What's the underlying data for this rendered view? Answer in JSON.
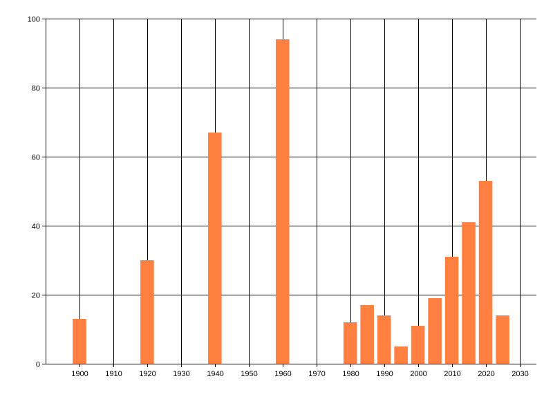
{
  "chart_data": {
    "type": "bar",
    "title": "",
    "xlabel": "",
    "ylabel": "",
    "x": [
      1900,
      1920,
      1940,
      1960,
      1980,
      1985,
      1990,
      1995,
      2000,
      2005,
      2010,
      2015,
      2020,
      2025
    ],
    "values": [
      13,
      30,
      67,
      94,
      12,
      17,
      14,
      5,
      11,
      19,
      31,
      41,
      53,
      14
    ],
    "bar_width_years": 4,
    "xlim": [
      1890,
      2035
    ],
    "ylim": [
      0,
      100
    ],
    "xticks": [
      "1900",
      "1910",
      "1920",
      "1930",
      "1940",
      "1950",
      "1960",
      "1970",
      "1980",
      "1990",
      "2000",
      "2010",
      "2020",
      "2030"
    ],
    "yticks": [
      "0",
      "20",
      "40",
      "60",
      "80",
      "100"
    ],
    "grid": true,
    "bar_color": "#FF8040",
    "grid_color": "#000000"
  }
}
